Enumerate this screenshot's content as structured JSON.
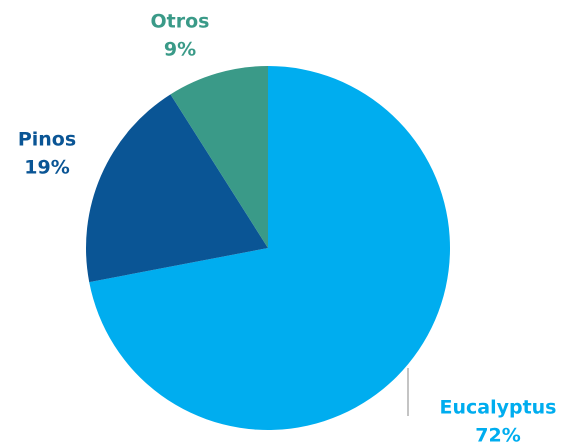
{
  "chart_data": {
    "type": "pie",
    "categories": [
      "Eucalyptus",
      "Pinos",
      "Otros"
    ],
    "values": [
      72,
      19,
      9
    ],
    "value_labels": [
      "72%",
      "19%",
      "9%"
    ],
    "colors": [
      "#00adef",
      "#0a5595",
      "#3a9a88"
    ]
  }
}
